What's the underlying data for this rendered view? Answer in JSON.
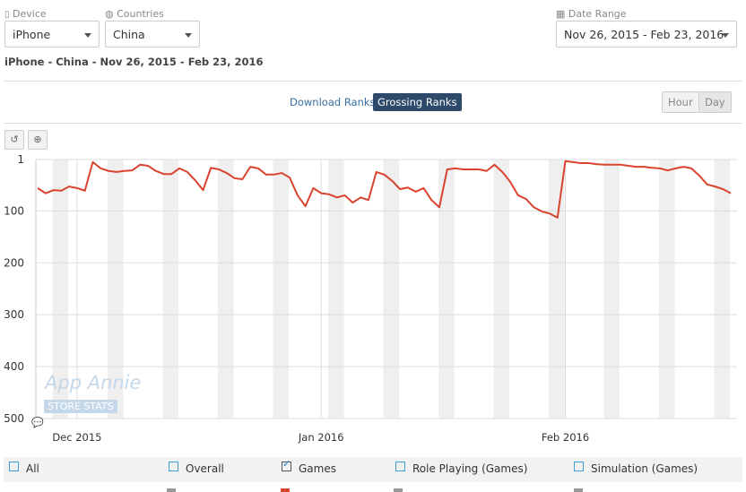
{
  "filters": {
    "device_label": "Device",
    "device": "iPhone",
    "countries_label": "Countries",
    "country": "China",
    "date_range_label": "Date Range",
    "date_range": "Nov 26, 2015 - Feb 23, 2016"
  },
  "summary": "iPhone - China - Nov 26, 2015 - Feb 23, 2016",
  "tabs": [
    "Download Ranks",
    "Grossing Ranks"
  ],
  "granularity": [
    "Hour",
    "Day"
  ],
  "watermark": {
    "brand": "App Annie",
    "sub": "STORE STATS"
  },
  "legend": [
    {
      "label": "All",
      "checked": false
    },
    {
      "label": "Overall",
      "checked": false
    },
    {
      "label": "Games",
      "checked": true
    },
    {
      "label": "Role Playing (Games)",
      "checked": false
    },
    {
      "label": "Simulation (Games)",
      "checked": false
    }
  ],
  "chart_data": {
    "type": "line",
    "y_inverted": true,
    "ylim": [
      1,
      500
    ],
    "yticks": [
      1,
      100,
      200,
      300,
      400,
      500
    ],
    "xlim": [
      0,
      88
    ],
    "xticks": [
      {
        "value": 5,
        "label": "Dec 2015"
      },
      {
        "value": 36,
        "label": "Jan 2016"
      },
      {
        "value": 67,
        "label": "Feb 2016"
      }
    ],
    "grid": true,
    "series": [
      {
        "name": "Games",
        "color": "#d9432f",
        "values": [
          56,
          66,
          60,
          61,
          53,
          56,
          61,
          6,
          18,
          23,
          25,
          23,
          22,
          11,
          13,
          23,
          29,
          29,
          18,
          25,
          41,
          60,
          17,
          20,
          27,
          37,
          39,
          15,
          18,
          30,
          30,
          27,
          36,
          70,
          91,
          56,
          66,
          68,
          74,
          70,
          84,
          74,
          79,
          25,
          30,
          42,
          58,
          55,
          63,
          56,
          79,
          93,
          20,
          18,
          20,
          20,
          20,
          23,
          11,
          25,
          44,
          70,
          77,
          93,
          101,
          105,
          113,
          4,
          6,
          8,
          8,
          10,
          11,
          11,
          11,
          13,
          15,
          15,
          17,
          18,
          22,
          18,
          15,
          18,
          32,
          49,
          53,
          58,
          66
        ]
      }
    ]
  }
}
